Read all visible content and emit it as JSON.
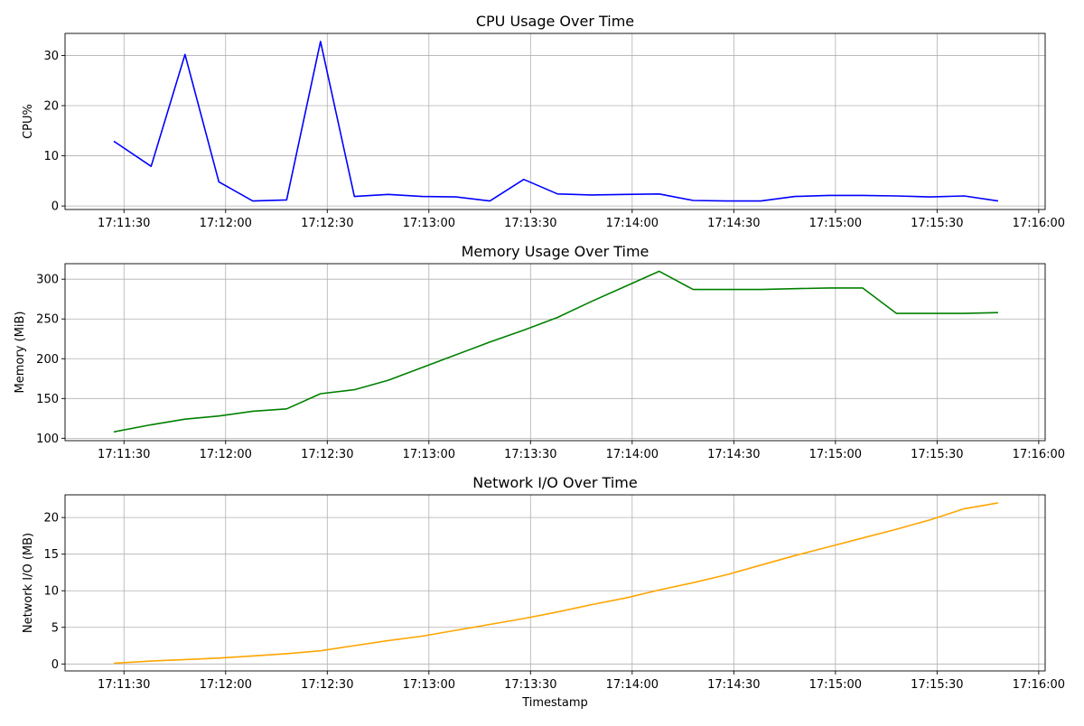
{
  "chart_data": [
    {
      "type": "line",
      "title": "CPU Usage Over Time",
      "xlabel": "",
      "ylabel": "CPU%",
      "x_ticks": [
        "17:11:30",
        "17:12:00",
        "17:12:30",
        "17:13:00",
        "17:13:30",
        "17:14:00",
        "17:14:30",
        "17:15:00",
        "17:15:30",
        "17:16:00"
      ],
      "y_ticks": [
        0,
        10,
        20,
        30
      ],
      "ylim": [
        -0.7,
        34.4
      ],
      "grid": true,
      "series": [
        {
          "color": "#0000ff",
          "x": [
            "17:11:27",
            "17:11:38",
            "17:11:48",
            "17:11:58",
            "17:12:08",
            "17:12:18",
            "17:12:28",
            "17:12:38",
            "17:12:48",
            "17:12:58",
            "17:13:08",
            "17:13:18",
            "17:13:28",
            "17:13:38",
            "17:13:48",
            "17:13:58",
            "17:14:08",
            "17:14:18",
            "17:14:28",
            "17:14:38",
            "17:14:48",
            "17:14:58",
            "17:15:08",
            "17:15:18",
            "17:15:28",
            "17:15:38",
            "17:15:48"
          ],
          "y": [
            12.9,
            7.9,
            30.2,
            4.8,
            1.0,
            1.2,
            32.8,
            1.9,
            2.3,
            1.9,
            1.8,
            1.0,
            5.3,
            2.4,
            2.2,
            2.3,
            2.4,
            1.1,
            1.0,
            1.0,
            1.9,
            2.1,
            2.1,
            2.0,
            1.8,
            2.0,
            1.0
          ]
        }
      ]
    },
    {
      "type": "line",
      "title": "Memory Usage Over Time",
      "xlabel": "",
      "ylabel": "Memory (MiB)",
      "x_ticks": [
        "17:11:30",
        "17:12:00",
        "17:12:30",
        "17:13:00",
        "17:13:30",
        "17:14:00",
        "17:14:30",
        "17:15:00",
        "17:15:30",
        "17:16:00"
      ],
      "y_ticks": [
        100,
        150,
        200,
        250,
        300
      ],
      "ylim": [
        97.0,
        319.5
      ],
      "grid": true,
      "series": [
        {
          "color": "#008000",
          "x": [
            "17:11:27",
            "17:11:38",
            "17:11:48",
            "17:11:58",
            "17:12:08",
            "17:12:18",
            "17:12:28",
            "17:12:38",
            "17:12:48",
            "17:12:58",
            "17:13:08",
            "17:13:18",
            "17:13:28",
            "17:13:38",
            "17:13:48",
            "17:13:58",
            "17:14:08",
            "17:14:18",
            "17:14:28",
            "17:14:38",
            "17:14:48",
            "17:14:58",
            "17:15:08",
            "17:15:18",
            "17:15:28",
            "17:15:38",
            "17:15:48"
          ],
          "y": [
            108,
            117,
            124,
            128,
            134,
            137,
            156,
            161,
            173,
            189,
            205,
            221,
            236,
            252,
            272,
            291,
            310,
            287,
            287,
            287,
            288,
            289,
            289,
            257,
            257,
            257,
            258
          ]
        }
      ]
    },
    {
      "type": "line",
      "title": "Network I/O Over Time",
      "xlabel": "Timestamp",
      "ylabel": "Network I/O (MB)",
      "x_ticks": [
        "17:11:30",
        "17:12:00",
        "17:12:30",
        "17:13:00",
        "17:13:30",
        "17:14:00",
        "17:14:30",
        "17:15:00",
        "17:15:30",
        "17:16:00"
      ],
      "y_ticks": [
        0,
        5,
        10,
        15,
        20
      ],
      "ylim": [
        -0.95,
        23.1
      ],
      "grid": true,
      "series": [
        {
          "color": "#ffa500",
          "x": [
            "17:11:27",
            "17:11:38",
            "17:11:48",
            "17:11:58",
            "17:12:08",
            "17:12:18",
            "17:12:28",
            "17:12:38",
            "17:12:48",
            "17:12:58",
            "17:13:08",
            "17:13:18",
            "17:13:28",
            "17:13:38",
            "17:13:48",
            "17:13:58",
            "17:14:08",
            "17:14:18",
            "17:14:28",
            "17:14:38",
            "17:14:48",
            "17:14:58",
            "17:15:08",
            "17:15:18",
            "17:15:28",
            "17:15:38",
            "17:15:48"
          ],
          "y": [
            0.1,
            0.4,
            0.6,
            0.8,
            1.1,
            1.4,
            1.8,
            2.5,
            3.2,
            3.8,
            4.6,
            5.4,
            6.2,
            7.1,
            8.1,
            9.0,
            10.1,
            11.1,
            12.2,
            13.5,
            14.8,
            16.0,
            17.2,
            18.4,
            19.7,
            21.2,
            22.0
          ]
        }
      ]
    }
  ]
}
